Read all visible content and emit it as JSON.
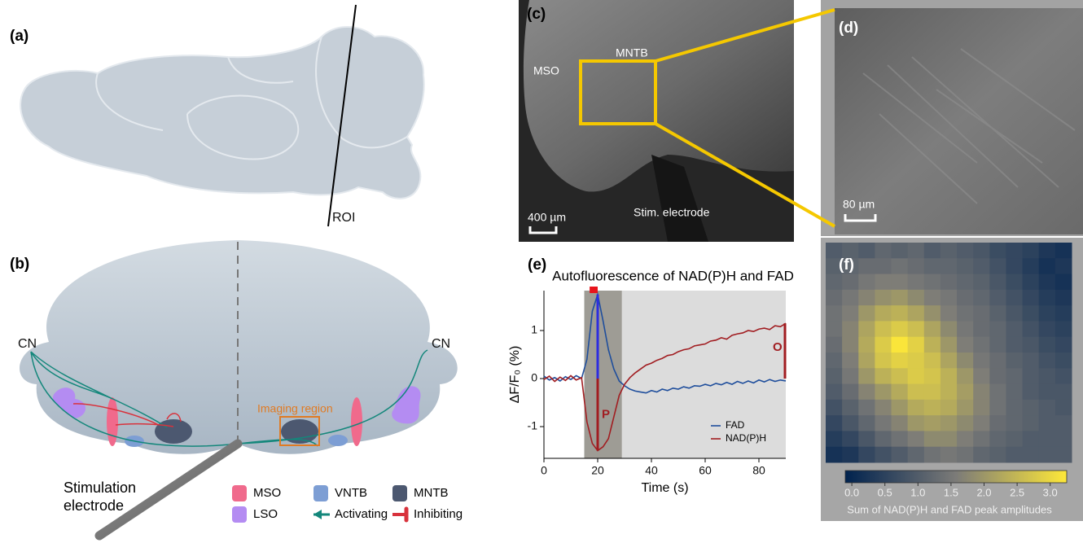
{
  "panel_labels": [
    "(a)",
    "(b)",
    "(c)",
    "(d)",
    "(e)",
    "(f)"
  ],
  "panel_a": {
    "roi_label": "ROI"
  },
  "panel_b": {
    "cn_left": "CN",
    "cn_right": "CN",
    "imaging_region": "Imaging region",
    "electrode_label": [
      "Stimulation",
      "electrode"
    ],
    "legend": [
      {
        "label": "MSO",
        "color": "#f06a8c"
      },
      {
        "label": "VNTB",
        "color": "#7d9ed4"
      },
      {
        "label": "MNTB",
        "color": "#4c5870"
      },
      {
        "label": "LSO",
        "color": "#b48cf2"
      },
      {
        "label": "Activating",
        "color": "#14877b"
      },
      {
        "label": "Inhibiting",
        "color": "#d8323c"
      }
    ]
  },
  "panel_c": {
    "mso": "MSO",
    "mntb": "MNTB",
    "electrode": "Stim. electrode",
    "scale": "400 µm"
  },
  "panel_d": {
    "scale": "80 µm"
  },
  "chart_data": [
    {
      "type": "line",
      "title": "Autofluorescence of NAD(P)H and FAD",
      "x_label": "Time (s)",
      "y_label": "ΔF/F₀ (%)",
      "xlim": [
        0,
        90
      ],
      "xticks": [
        0,
        20,
        40,
        60,
        80
      ],
      "ylim": [
        -1.66,
        1.83
      ],
      "yticks": [
        -1,
        0,
        1
      ],
      "shade": [
        15,
        29
      ],
      "stim_bar": [
        17,
        20
      ],
      "annotations": [
        "P",
        "O"
      ],
      "legend": "lower right",
      "x": [
        0,
        2,
        4,
        6,
        8,
        10,
        12,
        14,
        16,
        18,
        20,
        22,
        24,
        26,
        28,
        30,
        32,
        34,
        36,
        38,
        40,
        42,
        44,
        46,
        48,
        50,
        52,
        54,
        56,
        58,
        60,
        62,
        64,
        66,
        68,
        70,
        72,
        74,
        76,
        78,
        80,
        82,
        84,
        86,
        88,
        90
      ],
      "series": [
        {
          "name": "FAD",
          "color": "#1f4e9c",
          "values": [
            0.05,
            -0.03,
            0.02,
            -0.05,
            0.04,
            -0.02,
            0.06,
            0.0,
            0.4,
            1.4,
            1.75,
            1.2,
            0.6,
            0.2,
            -0.05,
            -0.15,
            -0.22,
            -0.26,
            -0.28,
            -0.3,
            -0.25,
            -0.28,
            -0.22,
            -0.25,
            -0.2,
            -0.22,
            -0.17,
            -0.2,
            -0.15,
            -0.16,
            -0.12,
            -0.15,
            -0.1,
            -0.13,
            -0.08,
            -0.12,
            -0.06,
            -0.1,
            -0.05,
            -0.09,
            -0.03,
            -0.07,
            -0.02,
            -0.06,
            -0.03,
            -0.05
          ]
        },
        {
          "name": "NAD(P)H",
          "color": "#a11d21",
          "values": [
            -0.02,
            0.05,
            -0.06,
            0.03,
            -0.04,
            0.06,
            -0.03,
            0.02,
            -0.9,
            -1.35,
            -1.5,
            -1.42,
            -1.25,
            -0.8,
            -0.35,
            -0.12,
            0.02,
            0.12,
            0.2,
            0.28,
            0.32,
            0.38,
            0.42,
            0.48,
            0.5,
            0.56,
            0.6,
            0.62,
            0.68,
            0.7,
            0.72,
            0.78,
            0.8,
            0.85,
            0.82,
            0.9,
            0.93,
            0.95,
            1.0,
            0.98,
            1.03,
            1.05,
            1.02,
            1.1,
            1.08,
            1.15
          ]
        }
      ]
    },
    {
      "type": "heatmap",
      "colormap": [
        "#00224e",
        "#7c7b78",
        "#fee838"
      ],
      "zlim": [
        -0.1,
        3.25
      ],
      "colorbar_ticks": [
        {
          "value": 0,
          "label": "0.0"
        },
        0.5,
        {
          "value": 1,
          "label": "1.0"
        },
        1.5,
        {
          "value": 2,
          "label": "2.0"
        },
        2.5,
        {
          "value": 3,
          "label": "3.0"
        }
      ],
      "colorbar_label": "Sum of NAD(P)H and FAD peak amplitudes",
      "values": [
        [
          1.0,
          1.1,
          1.0,
          1.2,
          1.1,
          1.2,
          1.0,
          1.1,
          1.0,
          0.9,
          0.7,
          0.6,
          0.5,
          0.3,
          0.2
        ],
        [
          1.1,
          1.2,
          1.3,
          1.3,
          1.4,
          1.3,
          1.2,
          1.2,
          1.1,
          1.0,
          0.8,
          0.6,
          0.4,
          0.2,
          0.3
        ],
        [
          1.2,
          1.3,
          1.5,
          1.6,
          1.6,
          1.5,
          1.4,
          1.3,
          1.2,
          1.1,
          0.9,
          0.7,
          0.5,
          0.3,
          0.2
        ],
        [
          1.3,
          1.5,
          1.7,
          1.9,
          2.0,
          1.8,
          1.6,
          1.5,
          1.3,
          1.2,
          1.0,
          0.8,
          0.6,
          0.4,
          0.3
        ],
        [
          1.4,
          1.6,
          2.0,
          2.3,
          2.4,
          2.2,
          1.9,
          1.6,
          1.4,
          1.3,
          1.1,
          0.9,
          0.7,
          0.5,
          0.4
        ],
        [
          1.4,
          1.7,
          2.2,
          2.6,
          2.8,
          2.6,
          2.2,
          1.8,
          1.5,
          1.3,
          1.2,
          1.0,
          0.8,
          0.6,
          0.5
        ],
        [
          1.3,
          1.7,
          2.3,
          2.8,
          3.2,
          2.9,
          2.4,
          2.0,
          1.6,
          1.4,
          1.2,
          1.0,
          0.9,
          0.7,
          0.6
        ],
        [
          1.2,
          1.6,
          2.2,
          2.7,
          2.9,
          2.8,
          2.6,
          2.2,
          1.8,
          1.5,
          1.3,
          1.1,
          1.0,
          0.8,
          0.7
        ],
        [
          1.1,
          1.5,
          2.0,
          2.4,
          2.6,
          2.8,
          2.7,
          2.4,
          2.0,
          1.6,
          1.3,
          1.2,
          1.0,
          0.9,
          0.8
        ],
        [
          1.0,
          1.3,
          1.7,
          2.0,
          2.3,
          2.6,
          2.6,
          2.4,
          2.1,
          1.7,
          1.4,
          1.2,
          1.0,
          0.9,
          0.9
        ],
        [
          0.8,
          1.1,
          1.4,
          1.7,
          2.0,
          2.3,
          2.4,
          2.3,
          2.0,
          1.7,
          1.4,
          1.2,
          1.1,
          1.0,
          0.9
        ],
        [
          0.6,
          0.9,
          1.2,
          1.5,
          1.7,
          2.0,
          2.1,
          2.0,
          1.8,
          1.6,
          1.3,
          1.2,
          1.1,
          1.0,
          1.0
        ],
        [
          0.4,
          0.6,
          0.9,
          1.2,
          1.4,
          1.6,
          1.8,
          1.8,
          1.6,
          1.4,
          1.2,
          1.1,
          1.0,
          1.0,
          1.0
        ],
        [
          0.2,
          0.3,
          0.6,
          0.8,
          1.0,
          1.2,
          1.4,
          1.5,
          1.4,
          1.2,
          1.1,
          1.0,
          1.0,
          1.0,
          1.0
        ]
      ]
    }
  ]
}
